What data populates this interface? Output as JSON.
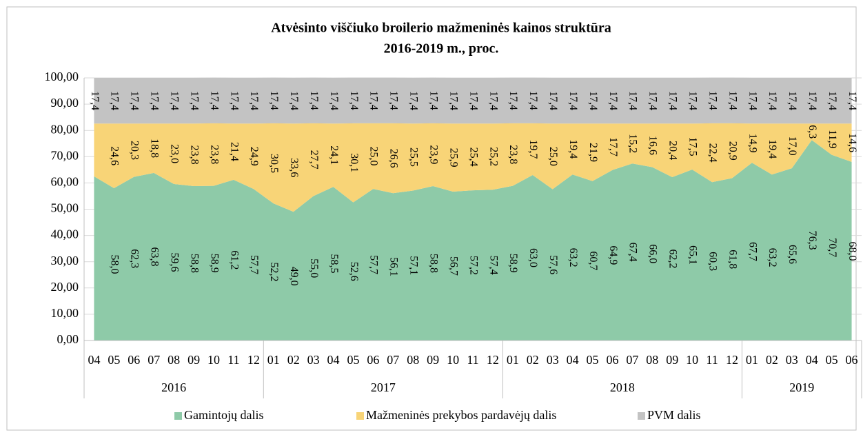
{
  "chart_data": {
    "type": "stacked-area",
    "title": "Atvėsinto viščiuko broilerio mažmeninės kainos struktūra",
    "subtitle": "2016-2019 m., proc.",
    "groups": [
      {
        "name": "2016",
        "categories": [
          "04",
          "05",
          "06",
          "07",
          "08",
          "09",
          "10",
          "11",
          "12"
        ]
      },
      {
        "name": "2017",
        "categories": [
          "01",
          "02",
          "03",
          "04",
          "05",
          "06",
          "07",
          "08",
          "09",
          "10",
          "11",
          "12"
        ]
      },
      {
        "name": "2018",
        "categories": [
          "01",
          "02",
          "03",
          "04",
          "05",
          "06",
          "07",
          "08",
          "09",
          "10",
          "11",
          "12"
        ]
      },
      {
        "name": "2019",
        "categories": [
          "01",
          "02",
          "03",
          "04",
          "05",
          "06"
        ]
      }
    ],
    "series": [
      {
        "name": "Gamintojų dalis",
        "color": "#8ecaa8",
        "values": [
          62.5,
          58.0,
          62.3,
          63.8,
          59.6,
          58.8,
          58.9,
          61.2,
          57.7,
          52.2,
          49.0,
          55.0,
          58.5,
          52.6,
          57.7,
          56.1,
          57.1,
          58.8,
          56.7,
          57.2,
          57.4,
          58.9,
          63.0,
          57.6,
          63.2,
          60.7,
          64.9,
          67.4,
          66.0,
          62.2,
          65.1,
          60.3,
          61.8,
          67.7,
          63.2,
          65.6,
          76.3,
          70.7,
          68.0
        ],
        "value_labels": [
          null,
          "58,0",
          "62,3",
          "63,8",
          "59,6",
          "58,8",
          "58,9",
          "61,2",
          "57,7",
          "52,2",
          "49,0",
          "55,0",
          "58,5",
          "52,6",
          "57,7",
          "56,1",
          "57,1",
          "58,8",
          "56,7",
          "57,2",
          "57,4",
          "58,9",
          "63,0",
          "57,6",
          "63,2",
          "60,7",
          "64,9",
          "67,4",
          "66,0",
          "62,2",
          "65,1",
          "60,3",
          "61,8",
          "67,7",
          "63,2",
          "65,6",
          "76,3",
          "70,7",
          "68,0"
        ]
      },
      {
        "name": "Mažmeninės prekybos pardavėjų dalis",
        "color": "#f8d477",
        "values": [
          20.1,
          24.6,
          20.3,
          18.8,
          23.0,
          23.8,
          23.8,
          21.4,
          24.9,
          30.5,
          33.6,
          27.7,
          24.1,
          30.1,
          25.0,
          26.6,
          25.5,
          23.9,
          25.9,
          25.4,
          25.2,
          23.8,
          19.7,
          25.0,
          19.4,
          21.9,
          17.7,
          15.2,
          16.6,
          20.4,
          17.5,
          22.4,
          20.9,
          14.9,
          19.4,
          17.0,
          6.3,
          11.9,
          14.6
        ],
        "value_labels": [
          null,
          "24,6",
          "20,3",
          "18,8",
          "23,0",
          "23,8",
          "23,8",
          "21,4",
          "24,9",
          "30,5",
          "33,6",
          "27,7",
          "24,1",
          "30,1",
          "25,0",
          "26,6",
          "25,5",
          "23,9",
          "25,9",
          "25,4",
          "25,2",
          "23,8",
          "19,7",
          "25,0",
          "19,4",
          "21,9",
          "17,7",
          "15,2",
          "16,6",
          "20,4",
          "17,5",
          "22,4",
          "20,9",
          "14,9",
          "19,4",
          "17,0",
          "6,3",
          "11,9",
          "14,6"
        ]
      },
      {
        "name": "PVM dalis",
        "color": "#c3c3c3",
        "values": [
          17.4,
          17.4,
          17.4,
          17.4,
          17.4,
          17.4,
          17.4,
          17.4,
          17.4,
          17.4,
          17.4,
          17.4,
          17.4,
          17.4,
          17.4,
          17.4,
          17.4,
          17.4,
          17.4,
          17.4,
          17.4,
          17.4,
          17.4,
          17.4,
          17.4,
          17.4,
          17.4,
          17.4,
          17.4,
          17.4,
          17.4,
          17.4,
          17.4,
          17.4,
          17.4,
          17.4,
          17.4,
          17.4,
          17.4
        ],
        "value_labels": [
          "17,4",
          "17,4",
          "17,4",
          "17,4",
          "17,4",
          "17,4",
          "17,4",
          "17,4",
          "17,4",
          "17,4",
          "17,4",
          "17,4",
          "17,4",
          "17,4",
          "17,4",
          "17,4",
          "17,4",
          "17,4",
          "17,4",
          "17,4",
          "17,4",
          "17,4",
          "17,4",
          "17,4",
          "17,4",
          "17,4",
          "17,4",
          "17,4",
          "17,4",
          "17,4",
          "17,4",
          "17,4",
          "17,4",
          "17,4",
          "17,4",
          "17,4",
          "17,4",
          "17,4",
          "17,4"
        ]
      }
    ],
    "ylim": [
      0,
      100
    ],
    "yticks": [
      {
        "value": 0,
        "label": "0,00"
      },
      {
        "value": 10,
        "label": "10,00"
      },
      {
        "value": 20,
        "label": "20,00"
      },
      {
        "value": 30,
        "label": "30,00"
      },
      {
        "value": 40,
        "label": "40,00"
      },
      {
        "value": 50,
        "label": "50,00"
      },
      {
        "value": 60,
        "label": "60,00"
      },
      {
        "value": 70,
        "label": "70,00"
      },
      {
        "value": 80,
        "label": "80,00"
      },
      {
        "value": 90,
        "label": "90,00"
      },
      {
        "value": 100,
        "label": "100,00"
      }
    ],
    "grid": true,
    "legend": "bottom"
  }
}
